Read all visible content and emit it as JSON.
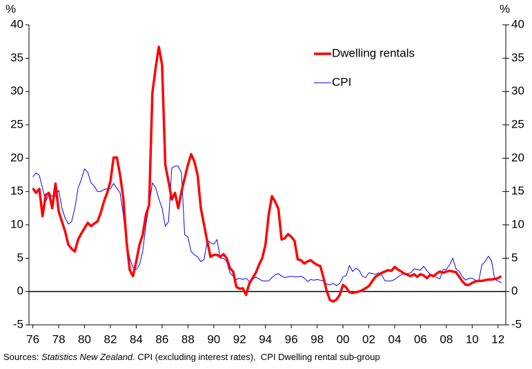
{
  "chart_data": {
    "type": "line",
    "y_label": "%",
    "y2_label": "%",
    "x": [
      1976,
      1976.25,
      1976.5,
      1976.75,
      1977,
      1977.25,
      1977.5,
      1977.75,
      1978,
      1978.25,
      1978.5,
      1978.75,
      1979,
      1979.25,
      1979.5,
      1979.75,
      1980,
      1980.25,
      1980.5,
      1980.75,
      1981,
      1981.25,
      1981.5,
      1981.75,
      1982,
      1982.25,
      1982.5,
      1982.75,
      1983,
      1983.25,
      1983.5,
      1983.75,
      1984,
      1984.25,
      1984.5,
      1984.75,
      1985,
      1985.25,
      1985.5,
      1985.75,
      1986,
      1986.25,
      1986.5,
      1986.75,
      1987,
      1987.25,
      1987.5,
      1987.75,
      1988,
      1988.25,
      1988.5,
      1988.75,
      1989,
      1989.25,
      1989.5,
      1989.75,
      1990,
      1990.25,
      1990.5,
      1990.75,
      1991,
      1991.25,
      1991.5,
      1991.75,
      1992,
      1992.25,
      1992.5,
      1992.75,
      1993,
      1993.25,
      1993.5,
      1993.75,
      1994,
      1994.25,
      1994.5,
      1994.75,
      1995,
      1995.25,
      1995.5,
      1995.75,
      1996,
      1996.25,
      1996.5,
      1996.75,
      1997,
      1997.25,
      1997.5,
      1997.75,
      1998,
      1998.25,
      1998.5,
      1998.75,
      1999,
      1999.25,
      1999.5,
      1999.75,
      2000,
      2000.25,
      2000.5,
      2000.75,
      2001,
      2001.25,
      2001.5,
      2001.75,
      2002,
      2002.25,
      2002.5,
      2002.75,
      2003,
      2003.25,
      2003.5,
      2003.75,
      2004,
      2004.25,
      2004.5,
      2004.75,
      2005,
      2005.25,
      2005.5,
      2005.75,
      2006,
      2006.25,
      2006.5,
      2006.75,
      2007,
      2007.25,
      2007.5,
      2007.75,
      2008,
      2008.25,
      2008.5,
      2008.75,
      2009,
      2009.25,
      2009.5,
      2009.75,
      2010,
      2010.25,
      2010.5,
      2010.75,
      2011,
      2011.25,
      2011.5,
      2011.75,
      2012,
      2012.25
    ],
    "series": [
      {
        "name": "Dwelling rentals",
        "color": "#ff0000",
        "values": [
          15.5,
          14.8,
          15.4,
          11.3,
          14.5,
          14.8,
          12.5,
          16.2,
          12,
          10.5,
          9,
          7,
          6.4,
          6,
          7.8,
          8.7,
          9.5,
          10.3,
          9.8,
          10.2,
          10.5,
          11.8,
          13.5,
          14.8,
          16.5,
          20.1,
          20.1,
          17.5,
          14,
          7.5,
          3.2,
          2.3,
          4.5,
          7,
          8.5,
          11.5,
          13,
          29.8,
          33.5,
          36.7,
          34,
          19,
          16.5,
          13.8,
          14.8,
          12.5,
          15,
          17,
          19,
          20.6,
          19.5,
          17.5,
          12.5,
          10,
          7.5,
          5.2,
          5.5,
          5.5,
          5.2,
          5.6,
          5,
          3.5,
          3,
          0.7,
          0.4,
          0.5,
          -0.5,
          1.2,
          2,
          2.8,
          4,
          5,
          7,
          11.5,
          14.3,
          13.5,
          12.4,
          7.8,
          8,
          8.6,
          8.2,
          7.6,
          4.8,
          4.7,
          4.2,
          4.5,
          4.7,
          4.3,
          4,
          3.8,
          2,
          0,
          -1.3,
          -1.5,
          -1.2,
          -0.5,
          1,
          0.6,
          -0.1,
          -0.2,
          -0.1,
          0,
          0.2,
          0.5,
          0.8,
          1.5,
          2.2,
          2.5,
          2.8,
          3,
          3.2,
          3.1,
          3.7,
          3.3,
          3,
          2.7,
          2.5,
          2.3,
          2.6,
          2.2,
          2.6,
          2.4,
          2,
          2.5,
          2.3,
          2.7,
          3,
          2.8,
          3,
          3.1,
          3,
          2.9,
          2.2,
          1.5,
          1,
          1,
          1.3,
          1.5,
          1.6,
          1.6,
          1.7,
          1.8,
          1.8,
          1.9,
          2,
          2.3
        ]
      },
      {
        "name": "CPI",
        "color": "#0000ff",
        "values": [
          17.2,
          17.8,
          17.4,
          15.5,
          13.5,
          14.7,
          14.3,
          14.3,
          15.2,
          12.5,
          11,
          10.1,
          10.5,
          12.5,
          15.5,
          16.8,
          18.4,
          17.9,
          16.3,
          15.8,
          15,
          15,
          15.3,
          15.4,
          15.4,
          16.2,
          15.5,
          14.8,
          11.5,
          7,
          5,
          3.6,
          3.3,
          4,
          6,
          10,
          13,
          16.3,
          15.6,
          13.9,
          12.5,
          9.8,
          10.5,
          18.5,
          18.8,
          18.8,
          17.8,
          8.5,
          8.2,
          6,
          5.5,
          5.2,
          4.5,
          4.8,
          7.7,
          7.3,
          7.1,
          7.8,
          5,
          5,
          4.5,
          2.8,
          2.3,
          1.8,
          2,
          1.8,
          2,
          1.5,
          1.8,
          2.2,
          1.9,
          1.6,
          1.6,
          1.6,
          2.1,
          2.5,
          2.7,
          2.3,
          2.1,
          2.2,
          2.3,
          2.2,
          2.2,
          2.3,
          2,
          1.5,
          1.8,
          1.7,
          1.8,
          1.7,
          1.6,
          1.1,
          1,
          1.2,
          0.9,
          1.2,
          2.2,
          2.4,
          3.9,
          3,
          3.5,
          3.2,
          2.3,
          2.1,
          2.8,
          2.7,
          2.6,
          2.8,
          2.5,
          1.6,
          1.6,
          1.6,
          1.8,
          2.2,
          2.5,
          2.7,
          2.7,
          2.8,
          3.4,
          3.3,
          3.2,
          3.8,
          3.1,
          2.6,
          2.4,
          2.1,
          1.9,
          3.3,
          3.3,
          4,
          5,
          3.4,
          3,
          2.2,
          1.7,
          2,
          2,
          1.7,
          1.5,
          4,
          4.5,
          5.3,
          4.6,
          1.8,
          1.6,
          1.3
        ]
      }
    ],
    "xlim": [
      1975.7,
      2012.6
    ],
    "xticks": [
      {
        "value": 1976,
        "label": "76"
      },
      {
        "value": 1978,
        "label": "78"
      },
      {
        "value": 1980,
        "label": "80"
      },
      {
        "value": 1982,
        "label": "82"
      },
      {
        "value": 1984,
        "label": "84"
      },
      {
        "value": 1986,
        "label": "86"
      },
      {
        "value": 1988,
        "label": "88"
      },
      {
        "value": 1990,
        "label": "90"
      },
      {
        "value": 1992,
        "label": "92"
      },
      {
        "value": 1994,
        "label": "94"
      },
      {
        "value": 1996,
        "label": "96"
      },
      {
        "value": 1998,
        "label": "98"
      },
      {
        "value": 2000,
        "label": "00"
      },
      {
        "value": 2002,
        "label": "02"
      },
      {
        "value": 2004,
        "label": "04"
      },
      {
        "value": 2006,
        "label": "06"
      },
      {
        "value": 2008,
        "label": "08"
      },
      {
        "value": 2010,
        "label": "10"
      },
      {
        "value": 2012,
        "label": "12"
      }
    ],
    "ylim": [
      -5,
      40
    ],
    "yticks": [
      -5,
      0,
      5,
      10,
      15,
      20,
      25,
      30,
      35,
      40
    ],
    "y2lim": [
      -5,
      40
    ],
    "y2ticks": [
      -5,
      0,
      5,
      10,
      15,
      20,
      25,
      30,
      35,
      40
    ],
    "source_prefix": "Sources:",
    "source_name": "Statistics New Zealand",
    "source_rest": ". CPI (excluding interest rates),  CPI Dwelling rental sub-group"
  }
}
